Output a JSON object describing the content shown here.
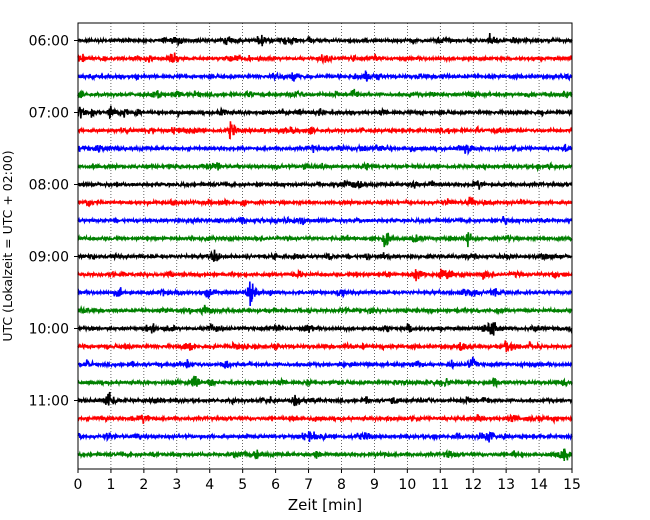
{
  "chart_data": {
    "type": "line",
    "title": "",
    "xlabel": "Zeit  [min]",
    "ylabel": "UTC (Lokalzeit = UTC + 02:00)",
    "xlim": [
      0,
      15
    ],
    "x_ticks": [
      "0",
      "1",
      "2",
      "3",
      "4",
      "5",
      "6",
      "7",
      "8",
      "9",
      "10",
      "11",
      "12",
      "13",
      "14",
      "15"
    ],
    "y_ticks": [
      "06:00",
      "07:00",
      "08:00",
      "09:00",
      "10:00",
      "11:00"
    ],
    "trace_interval_min": 15,
    "trace_count": 24,
    "start_time": "06:00",
    "color_cycle": [
      "#000000",
      "#ff0000",
      "#0000ff",
      "#008000"
    ],
    "vertical_grid": "dotted",
    "events": [
      {
        "trace": 0,
        "t": 12.5,
        "amp": 0.3
      },
      {
        "trace": 1,
        "t": 9.0,
        "amp": 0.22
      },
      {
        "trace": 2,
        "t": 8.7,
        "amp": 0.45
      },
      {
        "trace": 2,
        "t": 8.4,
        "amp": 0.3
      },
      {
        "trace": 2,
        "t": 6.5,
        "amp": 0.25
      },
      {
        "trace": 3,
        "t": 3.0,
        "amp": 0.25
      },
      {
        "trace": 3,
        "t": 14.2,
        "amp": 0.2
      },
      {
        "trace": 4,
        "t": 0.0,
        "amp": 0.55
      },
      {
        "trace": 4,
        "t": 0.95,
        "amp": 0.55
      },
      {
        "trace": 5,
        "t": 4.6,
        "amp": 0.75
      },
      {
        "trace": 6,
        "t": 11.8,
        "amp": 0.5
      },
      {
        "trace": 6,
        "t": 7.9,
        "amp": 0.22
      },
      {
        "trace": 7,
        "t": 14.3,
        "amp": 0.3
      },
      {
        "trace": 8,
        "t": 8.1,
        "amp": 0.22
      },
      {
        "trace": 9,
        "t": 11.2,
        "amp": 0.22
      },
      {
        "trace": 10,
        "t": 12.9,
        "amp": 0.3
      },
      {
        "trace": 11,
        "t": 9.3,
        "amp": 0.75
      },
      {
        "trace": 12,
        "t": 13.0,
        "amp": 0.22
      },
      {
        "trace": 13,
        "t": 10.2,
        "amp": 0.5
      },
      {
        "trace": 14,
        "t": 5.2,
        "amp": 0.75
      },
      {
        "trace": 14,
        "t": 2.5,
        "amp": 0.3
      },
      {
        "trace": 14,
        "t": 3.9,
        "amp": 0.4
      },
      {
        "trace": 15,
        "t": 3.4,
        "amp": 0.22
      },
      {
        "trace": 16,
        "t": 12.5,
        "amp": 0.85
      },
      {
        "trace": 16,
        "t": 10.0,
        "amp": 0.2
      },
      {
        "trace": 17,
        "t": 11.6,
        "amp": 0.45
      },
      {
        "trace": 17,
        "t": 4.7,
        "amp": 0.22
      },
      {
        "trace": 18,
        "t": 3.3,
        "amp": 0.4
      },
      {
        "trace": 19,
        "t": 12.6,
        "amp": 0.4
      },
      {
        "trace": 20,
        "t": 0.9,
        "amp": 1.2
      },
      {
        "trace": 20,
        "t": 6.55,
        "amp": 0.75
      },
      {
        "trace": 20,
        "t": 12.3,
        "amp": 0.25
      },
      {
        "trace": 21,
        "t": 12.1,
        "amp": 0.3
      },
      {
        "trace": 22,
        "t": 7.0,
        "amp": 0.22
      },
      {
        "trace": 23,
        "t": 7.2,
        "amp": 0.3
      },
      {
        "trace": 23,
        "t": 13.2,
        "amp": 0.2
      }
    ]
  }
}
